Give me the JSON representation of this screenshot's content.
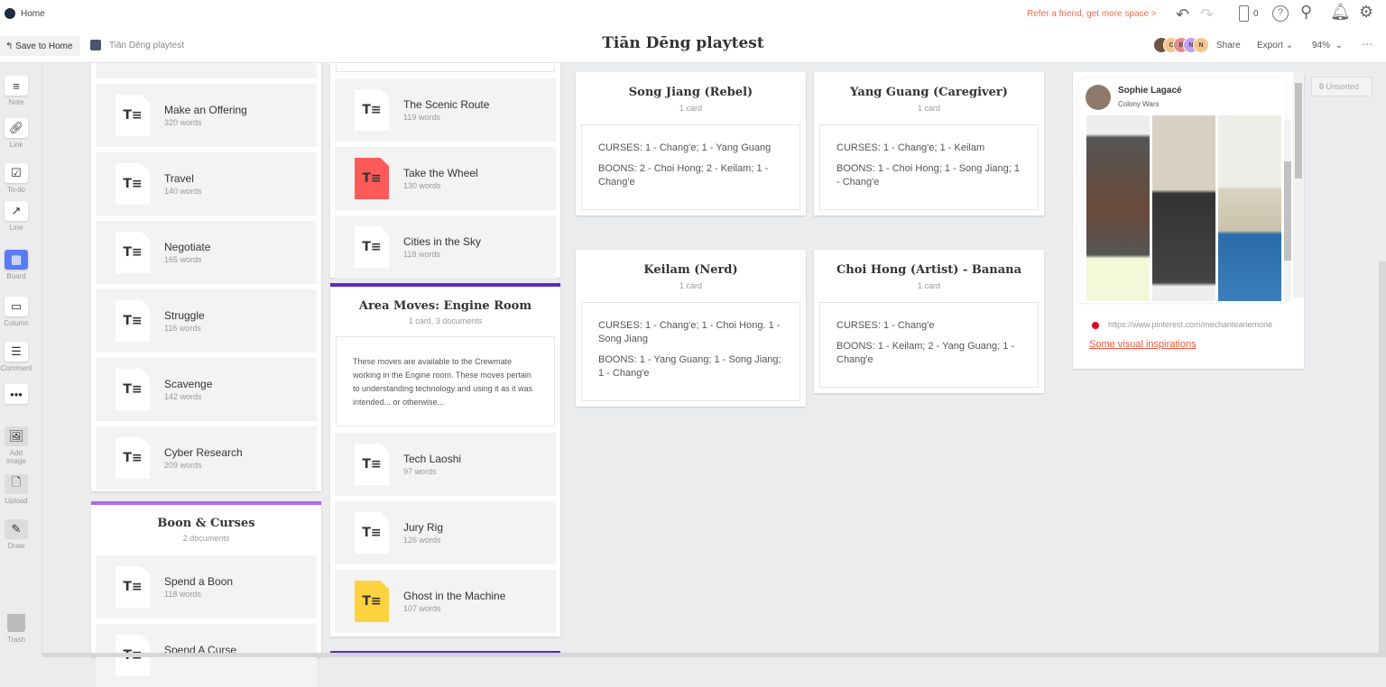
{
  "header": {
    "home_label": "Home",
    "save_label": "Save to Home",
    "breadcrumb": "Tiān Dēng playtest",
    "title": "Tiān Dēng playtest",
    "refer": "Refer a friend, get more space >",
    "device_count": "0",
    "share": "Share",
    "export": "Export",
    "zoom": "94%",
    "avatars": [
      "C",
      "B",
      "N",
      "N"
    ],
    "avatar_colors": [
      "#f5c58a",
      "#e88a8a",
      "#c3a0f2",
      "#f5c58a"
    ]
  },
  "toolbar": {
    "items": [
      "Note",
      "Link",
      "To-do",
      "Line",
      "Board",
      "Column",
      "Comment",
      "",
      "Add image",
      "Upload",
      "Draw"
    ],
    "trash": "Trash"
  },
  "left_column": {
    "docs": [
      {
        "title": "Make an Offering",
        "words": "320 words"
      },
      {
        "title": "Travel",
        "words": "140 words"
      },
      {
        "title": "Negotiate",
        "words": "165 words"
      },
      {
        "title": "Struggle",
        "words": "116 words"
      },
      {
        "title": "Scavenge",
        "words": "142 words"
      },
      {
        "title": "Cyber Research",
        "words": "209 words"
      }
    ]
  },
  "boon_column": {
    "title": "Boon & Curses",
    "subtitle": "2 documents",
    "docs": [
      {
        "title": "Spend a Boon",
        "words": "118 words"
      },
      {
        "title": "Spend A Curse",
        "words": ""
      }
    ],
    "accent": "#a66cf0"
  },
  "mid_column": {
    "docs": [
      {
        "title": "The Scenic Route",
        "words": "119 words",
        "color": "#fff"
      },
      {
        "title": "Take the Wheel",
        "words": "130 words",
        "color": "#ff5a5a"
      },
      {
        "title": "Cities in the Sky",
        "words": "118 words",
        "color": "#fff"
      }
    ]
  },
  "engine_column": {
    "title": "Area Moves: Engine Room",
    "subtitle": "1 card, 3 documents",
    "note": "These moves are available to the Crewmate working in the Engine room. These moves pertain to understanding technology and using it as it was intended... or otherwise...",
    "docs": [
      {
        "title": "Tech Laoshi",
        "words": "97 words",
        "color": "#fff"
      },
      {
        "title": "Jury Rig",
        "words": "126 words",
        "color": "#fff"
      },
      {
        "title": "Ghost in the Machine",
        "words": "107 words",
        "color": "#ffd23f"
      }
    ],
    "accent": "#5b2bc2"
  },
  "boards": [
    {
      "title": "Song Jiang (Rebel)",
      "count": "1 card",
      "curses": "CURSES: 1 - Chang'e; 1 - Yang Guang",
      "boons": "BOONS: 2 - Choi Hong; 2 - Keilam; 1 - Chang'e"
    },
    {
      "title": "Yang Guang (Caregiver)",
      "count": "1 card",
      "curses": "CURSES: 1 - Chang'e; 1 - Keilam",
      "boons": "BOONS: 1 - Choi Hong; 1 - Song Jiang; 1 - Chang'e"
    },
    {
      "title": "Keilam (Nerd)",
      "count": "1 card",
      "curses": "CURSES: 1 - Chang'e; 1 - Choi Hong. 1 - Song Jiang",
      "boons": "BOONS: 1 - Yang Guang; 1 - Song Jiang; 1 - Chang'e"
    },
    {
      "title": "Choi Hong (Artist) - Banana",
      "count": "1 card",
      "curses": "CURSES: 1 - Chang'e",
      "boons": "BOONS: 1 - Keilam; 2 - Yang Guang; 1 - Chang'e"
    }
  ],
  "pinterest": {
    "user": "Sophie Lagacé",
    "board": "Colony Wars",
    "url": "https://www.pinterest.com/mechanteanemone",
    "link": "Some visual inspirations"
  },
  "unsorted": {
    "count": "0",
    "label": "Unsorted"
  }
}
